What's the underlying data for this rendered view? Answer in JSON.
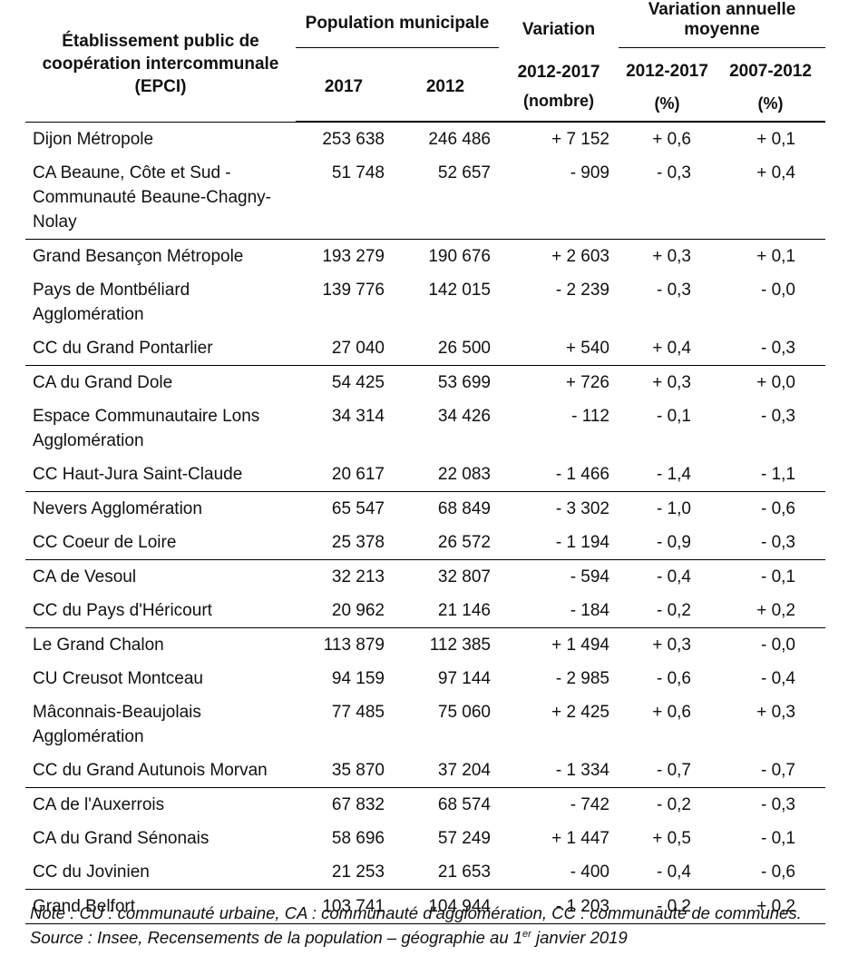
{
  "table": {
    "headers": {
      "epci": "Établissement public de coopération intercommunale (EPCI)",
      "population": "Population municipale",
      "pop_2017": "2017",
      "pop_2012": "2012",
      "variation": "Variation",
      "variation_period": "2012-2017",
      "variation_unit": "(nombre)",
      "annual": "Variation annuelle moyenne",
      "annual_p1": "2012-2017",
      "annual_p2": "2007-2012",
      "annual_unit1": "(%)",
      "annual_unit2": "(%)"
    },
    "rows": [
      {
        "name": "Dijon Métropole",
        "pop2017": "253 638",
        "pop2012": "246 486",
        "var": "+ 7 152",
        "v1217": "+ 0,6",
        "v0712": "+ 0,1",
        "group_start": true
      },
      {
        "name": "CA Beaune, Côte et Sud - Communauté Beaune-Chagny-Nolay",
        "pop2017": "51 748",
        "pop2012": "52 657",
        "var": "- 909",
        "v1217": "- 0,3",
        "v0712": "+ 0,4",
        "group_start": false
      },
      {
        "name": "Grand Besançon Métropole",
        "pop2017": "193 279",
        "pop2012": "190 676",
        "var": "+ 2 603",
        "v1217": "+ 0,3",
        "v0712": "+ 0,1",
        "group_start": true
      },
      {
        "name": "Pays de Montbéliard Agglomération",
        "pop2017": "139 776",
        "pop2012": "142 015",
        "var": "- 2 239",
        "v1217": "- 0,3",
        "v0712": "- 0,0",
        "group_start": false
      },
      {
        "name": "CC du Grand Pontarlier",
        "pop2017": "27 040",
        "pop2012": "26 500",
        "var": "+ 540",
        "v1217": "+ 0,4",
        "v0712": "- 0,3",
        "group_start": false
      },
      {
        "name": "CA du Grand Dole",
        "pop2017": "54 425",
        "pop2012": "53 699",
        "var": "+ 726",
        "v1217": "+ 0,3",
        "v0712": "+ 0,0",
        "group_start": true
      },
      {
        "name": "Espace Communautaire Lons Agglomération",
        "pop2017": "34 314",
        "pop2012": "34 426",
        "var": "- 112",
        "v1217": "- 0,1",
        "v0712": "- 0,3",
        "group_start": false
      },
      {
        "name": "CC Haut-Jura Saint-Claude",
        "pop2017": "20 617",
        "pop2012": "22 083",
        "var": "- 1 466",
        "v1217": "- 1,4",
        "v0712": "- 1,1",
        "group_start": false
      },
      {
        "name": "Nevers Agglomération",
        "pop2017": "65 547",
        "pop2012": "68 849",
        "var": "- 3 302",
        "v1217": "- 1,0",
        "v0712": "- 0,6",
        "group_start": true
      },
      {
        "name": "CC Coeur de Loire",
        "pop2017": "25 378",
        "pop2012": "26 572",
        "var": "- 1 194",
        "v1217": "- 0,9",
        "v0712": "- 0,3",
        "group_start": false
      },
      {
        "name": "CA de Vesoul",
        "pop2017": "32 213",
        "pop2012": "32 807",
        "var": "- 594",
        "v1217": "- 0,4",
        "v0712": "- 0,1",
        "group_start": true
      },
      {
        "name": "CC du Pays d'Héricourt",
        "pop2017": "20 962",
        "pop2012": "21 146",
        "var": "- 184",
        "v1217": "- 0,2",
        "v0712": "+ 0,2",
        "group_start": false
      },
      {
        "name": "Le Grand Chalon",
        "pop2017": "113 879",
        "pop2012": "112 385",
        "var": "+ 1 494",
        "v1217": "+ 0,3",
        "v0712": "- 0,0",
        "group_start": true
      },
      {
        "name": "CU Creusot Montceau",
        "pop2017": "94 159",
        "pop2012": "97 144",
        "var": "- 2 985",
        "v1217": "- 0,6",
        "v0712": "- 0,4",
        "group_start": false
      },
      {
        "name": "Mâconnais-Beaujolais Agglomération",
        "pop2017": "77 485",
        "pop2012": "75 060",
        "var": "+ 2 425",
        "v1217": "+ 0,6",
        "v0712": "+ 0,3",
        "group_start": false
      },
      {
        "name": "CC du Grand Autunois Morvan",
        "pop2017": "35 870",
        "pop2012": "37 204",
        "var": "- 1 334",
        "v1217": "- 0,7",
        "v0712": "- 0,7",
        "group_start": false
      },
      {
        "name": "CA de l'Auxerrois",
        "pop2017": "67 832",
        "pop2012": "68 574",
        "var": "- 742",
        "v1217": "- 0,2",
        "v0712": "- 0,3",
        "group_start": true
      },
      {
        "name": "CA du Grand Sénonais",
        "pop2017": "58 696",
        "pop2012": "57 249",
        "var": "+ 1 447",
        "v1217": "+ 0,5",
        "v0712": "- 0,1",
        "group_start": false
      },
      {
        "name": "CC du Jovinien",
        "pop2017": "21 253",
        "pop2012": "21 653",
        "var": "- 400",
        "v1217": "- 0,4",
        "v0712": "- 0,6",
        "group_start": false
      },
      {
        "name": "Grand Belfort",
        "pop2017": "103 741",
        "pop2012": "104 944",
        "var": "- 1 203",
        "v1217": "- 0,2",
        "v0712": "+ 0,2",
        "group_start": true
      }
    ]
  },
  "notes": {
    "note": "Note : CU : communauté urbaine, CA : communauté d’agglomération, CC : communauté de communes.",
    "source_prefix": "Source : Insee, Recensements de la population – géographie au 1",
    "source_sup": "er",
    "source_suffix": " janvier 2019"
  }
}
